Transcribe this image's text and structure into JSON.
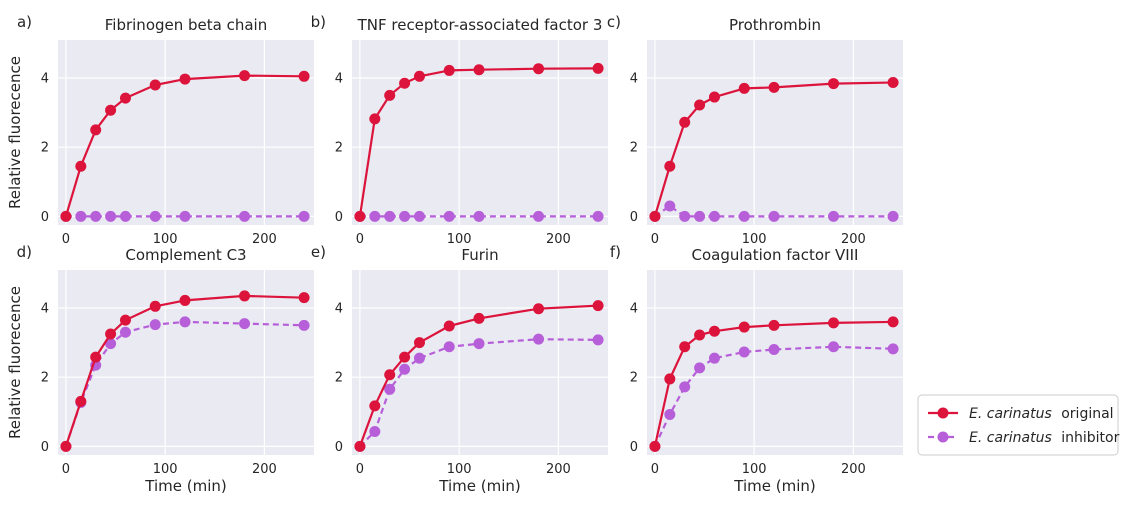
{
  "colors": {
    "original": "#dc143c",
    "inhibitor": "#b65fd9",
    "plot_background": "#eaeaf2",
    "grid": "#ffffff"
  },
  "legend": {
    "placement": "bottom-right-outside",
    "entries": [
      {
        "species": "E. carinatus",
        "label": "original",
        "style": "solid"
      },
      {
        "species": "E. carinatus",
        "label": "inhibitor",
        "style": "dashed"
      }
    ]
  },
  "chart_data": [
    {
      "type": "line",
      "panel": "a)",
      "title": "Fibrinogen beta chain",
      "xlabel": "",
      "ylabel": "Relative fluorecence",
      "xlim": [
        -8,
        250
      ],
      "ylim": [
        -0.25,
        5.1
      ],
      "xticks": [
        0,
        100,
        200
      ],
      "yticks": [
        0,
        2,
        4
      ],
      "grid": true,
      "x": [
        0,
        15,
        30,
        45,
        60,
        90,
        120,
        180,
        240
      ],
      "series": [
        {
          "name": "E. carinatus original",
          "values": [
            0,
            1.45,
            2.5,
            3.07,
            3.42,
            3.8,
            3.97,
            4.07,
            4.05
          ]
        },
        {
          "name": "E. carinatus inhibitor",
          "values": [
            0,
            0,
            0,
            0,
            0,
            0,
            0,
            0,
            0
          ]
        }
      ]
    },
    {
      "type": "line",
      "panel": "b)",
      "title": "TNF receptor-associated factor 3",
      "xlabel": "",
      "ylabel": "",
      "xlim": [
        -8,
        250
      ],
      "ylim": [
        -0.25,
        5.1
      ],
      "xticks": [
        0,
        100,
        200
      ],
      "yticks": [
        0,
        2,
        4
      ],
      "grid": true,
      "x": [
        0,
        15,
        30,
        45,
        60,
        90,
        120,
        180,
        240
      ],
      "series": [
        {
          "name": "E. carinatus original",
          "values": [
            0,
            2.82,
            3.5,
            3.85,
            4.05,
            4.22,
            4.24,
            4.27,
            4.28
          ]
        },
        {
          "name": "E. carinatus inhibitor",
          "values": [
            0,
            0,
            0,
            0,
            0,
            0,
            0,
            0,
            0
          ]
        }
      ]
    },
    {
      "type": "line",
      "panel": "c)",
      "title": "Prothrombin",
      "xlabel": "",
      "ylabel": "",
      "xlim": [
        -8,
        250
      ],
      "ylim": [
        -0.25,
        5.1
      ],
      "xticks": [
        0,
        100,
        200
      ],
      "yticks": [
        0,
        2,
        4
      ],
      "grid": true,
      "x": [
        0,
        15,
        30,
        45,
        60,
        90,
        120,
        180,
        240
      ],
      "series": [
        {
          "name": "E. carinatus original",
          "values": [
            0,
            1.45,
            2.72,
            3.22,
            3.45,
            3.7,
            3.73,
            3.84,
            3.87
          ]
        },
        {
          "name": "E. carinatus inhibitor",
          "values": [
            0,
            0.3,
            0,
            0,
            0,
            0,
            0,
            0,
            0
          ]
        }
      ]
    },
    {
      "type": "line",
      "panel": "d)",
      "title": "Complement C3",
      "xlabel": "Time (min)",
      "ylabel": "Relative fluorecence",
      "xlim": [
        -8,
        250
      ],
      "ylim": [
        -0.25,
        5.1
      ],
      "xticks": [
        0,
        100,
        200
      ],
      "yticks": [
        0,
        2,
        4
      ],
      "grid": true,
      "x": [
        0,
        15,
        30,
        45,
        60,
        90,
        120,
        180,
        240
      ],
      "series": [
        {
          "name": "E. carinatus original",
          "values": [
            0,
            1.3,
            2.58,
            3.25,
            3.65,
            4.05,
            4.22,
            4.35,
            4.3
          ]
        },
        {
          "name": "E. carinatus inhibitor",
          "values": [
            0,
            1.27,
            2.35,
            2.97,
            3.3,
            3.52,
            3.6,
            3.55,
            3.5
          ]
        }
      ]
    },
    {
      "type": "line",
      "panel": "e)",
      "title": "Furin",
      "xlabel": "Time (min)",
      "ylabel": "",
      "xlim": [
        -8,
        250
      ],
      "ylim": [
        -0.25,
        5.1
      ],
      "xticks": [
        0,
        100,
        200
      ],
      "yticks": [
        0,
        2,
        4
      ],
      "grid": true,
      "x": [
        0,
        15,
        30,
        45,
        60,
        90,
        120,
        180,
        240
      ],
      "series": [
        {
          "name": "E. carinatus original",
          "values": [
            0,
            1.17,
            2.07,
            2.58,
            3.0,
            3.48,
            3.7,
            3.98,
            4.07
          ]
        },
        {
          "name": "E. carinatus inhibitor",
          "values": [
            0,
            0.43,
            1.65,
            2.23,
            2.55,
            2.88,
            2.97,
            3.1,
            3.08
          ]
        }
      ]
    },
    {
      "type": "line",
      "panel": "f)",
      "title": "Coagulation factor VIII",
      "xlabel": "Time (min)",
      "ylabel": "",
      "xlim": [
        -8,
        250
      ],
      "ylim": [
        -0.25,
        5.1
      ],
      "xticks": [
        0,
        100,
        200
      ],
      "yticks": [
        0,
        2,
        4
      ],
      "grid": true,
      "x": [
        0,
        15,
        30,
        45,
        60,
        90,
        120,
        180,
        240
      ],
      "series": [
        {
          "name": "E. carinatus original",
          "values": [
            0,
            1.95,
            2.88,
            3.22,
            3.33,
            3.45,
            3.5,
            3.57,
            3.6
          ]
        },
        {
          "name": "E. carinatus inhibitor",
          "values": [
            0,
            0.92,
            1.72,
            2.27,
            2.55,
            2.73,
            2.8,
            2.88,
            2.82
          ]
        }
      ]
    }
  ]
}
